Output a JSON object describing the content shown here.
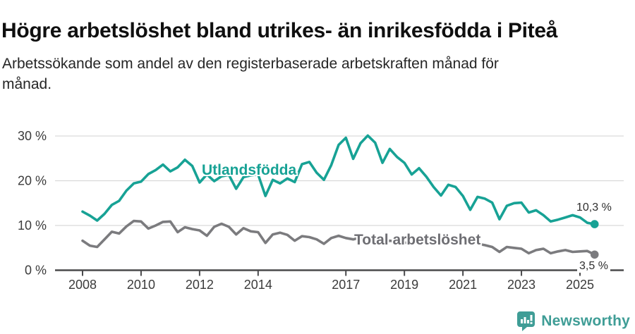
{
  "header": {
    "title": "Högre arbetslöshet bland utrikes- än inrikesfödda i Piteå",
    "subtitle_line1": "Arbetssökande som andel av den registerbaserade arbetskraften månad för",
    "subtitle_line2": "månad."
  },
  "footer": {
    "brand": "Newsworthy"
  },
  "colors": {
    "accent_teal": "#17a295",
    "series_gray": "#7b7b7e",
    "grid": "#d9d9d9",
    "axis": "#4a4a4c",
    "tick_text": "#3b3b3b",
    "brand_teal": "#3f9d96"
  },
  "chart_data": {
    "type": "line",
    "title": "Högre arbetslöshet bland utrikes- än inrikesfödda i Piteå",
    "subtitle": "Arbetssökande som andel av den registerbaserade arbetskraften månad för månad.",
    "xlabel": "",
    "ylabel": "",
    "ylim": [
      0,
      30
    ],
    "xlim": [
      2008,
      2025.5
    ],
    "grid": "horizontal",
    "legend_position": "inline-labels",
    "y_ticks": [
      0,
      10,
      20,
      30
    ],
    "y_tick_labels": [
      "0 %",
      "10 %",
      "20 %",
      "30 %"
    ],
    "x_ticks": [
      2008,
      2010,
      2012,
      2014,
      2017,
      2019,
      2021,
      2023,
      2025
    ],
    "x_tick_labels": [
      "2008",
      "2010",
      "2012",
      "2014",
      "2017",
      "2019",
      "2021",
      "2023",
      "2025"
    ],
    "series": [
      {
        "name": "Utlandsfödda",
        "color": "#17a295",
        "end_label": "10,3 %",
        "end_value": 10.3,
        "points": [
          [
            2008.0,
            13.1
          ],
          [
            2008.25,
            12.2
          ],
          [
            2008.5,
            11.1
          ],
          [
            2008.75,
            12.6
          ],
          [
            2009.0,
            14.6
          ],
          [
            2009.25,
            15.5
          ],
          [
            2009.5,
            17.8
          ],
          [
            2009.75,
            19.4
          ],
          [
            2010.0,
            19.8
          ],
          [
            2010.25,
            21.5
          ],
          [
            2010.5,
            22.4
          ],
          [
            2010.75,
            23.6
          ],
          [
            2011.0,
            22.1
          ],
          [
            2011.25,
            23.0
          ],
          [
            2011.5,
            24.7
          ],
          [
            2011.75,
            23.3
          ],
          [
            2012.0,
            19.6
          ],
          [
            2012.25,
            21.4
          ],
          [
            2012.5,
            19.9
          ],
          [
            2012.75,
            21.0
          ],
          [
            2013.0,
            21.3
          ],
          [
            2013.25,
            18.2
          ],
          [
            2013.5,
            20.8
          ],
          [
            2013.75,
            21.2
          ],
          [
            2014.0,
            21.4
          ],
          [
            2014.25,
            16.6
          ],
          [
            2014.5,
            20.2
          ],
          [
            2014.75,
            19.4
          ],
          [
            2015.0,
            20.5
          ],
          [
            2015.25,
            19.7
          ],
          [
            2015.5,
            23.7
          ],
          [
            2015.75,
            24.2
          ],
          [
            2016.0,
            21.8
          ],
          [
            2016.25,
            20.2
          ],
          [
            2016.5,
            23.5
          ],
          [
            2016.75,
            28.0
          ],
          [
            2017.0,
            29.6
          ],
          [
            2017.25,
            24.9
          ],
          [
            2017.5,
            28.4
          ],
          [
            2017.75,
            30.1
          ],
          [
            2018.0,
            28.5
          ],
          [
            2018.25,
            24.0
          ],
          [
            2018.5,
            27.1
          ],
          [
            2018.75,
            25.3
          ],
          [
            2019.0,
            24.0
          ],
          [
            2019.25,
            21.4
          ],
          [
            2019.5,
            22.8
          ],
          [
            2019.75,
            20.9
          ],
          [
            2020.0,
            18.6
          ],
          [
            2020.25,
            16.7
          ],
          [
            2020.5,
            19.1
          ],
          [
            2020.75,
            18.6
          ],
          [
            2021.0,
            16.6
          ],
          [
            2021.25,
            13.5
          ],
          [
            2021.5,
            16.4
          ],
          [
            2021.75,
            16.0
          ],
          [
            2022.0,
            15.1
          ],
          [
            2022.25,
            11.4
          ],
          [
            2022.5,
            14.4
          ],
          [
            2022.75,
            15.0
          ],
          [
            2023.0,
            15.1
          ],
          [
            2023.25,
            12.9
          ],
          [
            2023.5,
            13.4
          ],
          [
            2023.75,
            12.3
          ],
          [
            2024.0,
            10.9
          ],
          [
            2024.25,
            11.3
          ],
          [
            2024.5,
            11.8
          ],
          [
            2024.75,
            12.3
          ],
          [
            2025.0,
            11.8
          ],
          [
            2025.25,
            10.6
          ],
          [
            2025.5,
            10.3
          ]
        ]
      },
      {
        "name": "Total arbetslöshet",
        "color": "#7b7b7e",
        "end_label": "3,5 %",
        "end_value": 3.5,
        "points": [
          [
            2008.0,
            6.6
          ],
          [
            2008.25,
            5.5
          ],
          [
            2008.5,
            5.2
          ],
          [
            2008.75,
            6.9
          ],
          [
            2009.0,
            8.6
          ],
          [
            2009.25,
            8.2
          ],
          [
            2009.5,
            9.8
          ],
          [
            2009.75,
            11.0
          ],
          [
            2010.0,
            10.9
          ],
          [
            2010.25,
            9.3
          ],
          [
            2010.5,
            10.0
          ],
          [
            2010.75,
            10.8
          ],
          [
            2011.0,
            10.9
          ],
          [
            2011.25,
            8.5
          ],
          [
            2011.5,
            9.6
          ],
          [
            2011.75,
            9.2
          ],
          [
            2012.0,
            8.9
          ],
          [
            2012.25,
            7.7
          ],
          [
            2012.5,
            9.7
          ],
          [
            2012.75,
            10.4
          ],
          [
            2013.0,
            9.7
          ],
          [
            2013.25,
            8.0
          ],
          [
            2013.5,
            9.4
          ],
          [
            2013.75,
            8.7
          ],
          [
            2014.0,
            8.5
          ],
          [
            2014.25,
            6.1
          ],
          [
            2014.5,
            8.0
          ],
          [
            2014.75,
            8.4
          ],
          [
            2015.0,
            7.9
          ],
          [
            2015.25,
            6.6
          ],
          [
            2015.5,
            7.6
          ],
          [
            2015.75,
            7.4
          ],
          [
            2016.0,
            6.9
          ],
          [
            2016.25,
            5.9
          ],
          [
            2016.5,
            7.2
          ],
          [
            2016.75,
            7.7
          ],
          [
            2017.0,
            7.2
          ],
          [
            2017.25,
            6.9
          ],
          [
            2017.5,
            7.3
          ],
          [
            2017.75,
            7.0
          ],
          [
            2018.0,
            6.6
          ],
          [
            2018.25,
            6.1
          ],
          [
            2018.5,
            6.6
          ],
          [
            2018.75,
            6.4
          ],
          [
            2019.0,
            6.2
          ],
          [
            2019.25,
            5.9
          ],
          [
            2019.5,
            6.3
          ],
          [
            2019.75,
            6.1
          ],
          [
            2020.0,
            6.0
          ],
          [
            2020.25,
            6.6
          ],
          [
            2020.5,
            6.9
          ],
          [
            2020.75,
            6.6
          ],
          [
            2021.0,
            6.3
          ],
          [
            2021.25,
            6.0
          ],
          [
            2021.5,
            5.9
          ],
          [
            2021.75,
            5.6
          ],
          [
            2022.0,
            5.2
          ],
          [
            2022.25,
            4.1
          ],
          [
            2022.5,
            5.2
          ],
          [
            2022.75,
            5.0
          ],
          [
            2023.0,
            4.8
          ],
          [
            2023.25,
            3.8
          ],
          [
            2023.5,
            4.5
          ],
          [
            2023.75,
            4.8
          ],
          [
            2024.0,
            3.8
          ],
          [
            2024.25,
            4.2
          ],
          [
            2024.5,
            4.5
          ],
          [
            2024.75,
            4.1
          ],
          [
            2025.0,
            4.2
          ],
          [
            2025.25,
            4.3
          ],
          [
            2025.5,
            3.5
          ]
        ]
      }
    ]
  }
}
